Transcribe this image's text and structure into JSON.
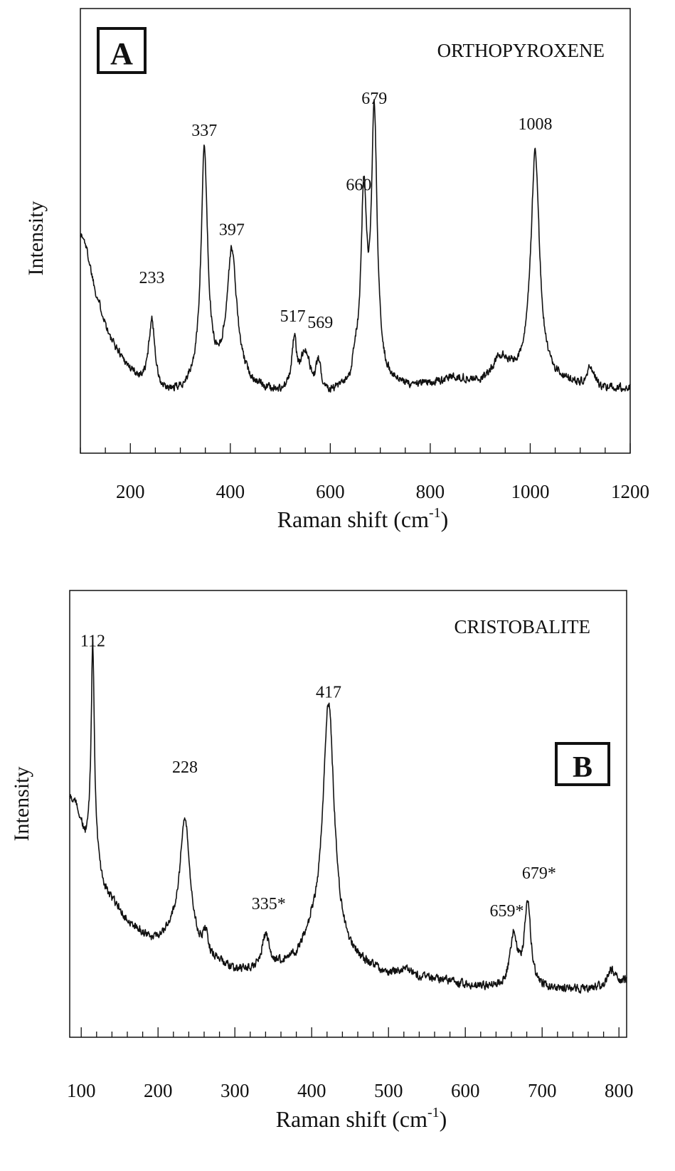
{
  "chart_data": [
    {
      "panel_label": "A",
      "type": "line",
      "title": "ORTHOPYROXENE",
      "xlabel": "Raman shift (cm",
      "xlabel_sup": "-1",
      "xlabel_close": ")",
      "ylabel": "Intensity",
      "xlim": [
        100,
        1200
      ],
      "ylim": [
        0,
        100
      ],
      "grid": false,
      "xticks": [
        200,
        400,
        600,
        800,
        1000,
        1200
      ],
      "xtick_labels": [
        "200",
        "400",
        "600",
        "800",
        "1000",
        "1200"
      ],
      "baseline": [
        [
          100,
          58
        ],
        [
          110,
          55
        ],
        [
          130,
          40
        ],
        [
          160,
          25
        ],
        [
          200,
          15
        ],
        [
          230,
          10
        ],
        [
          260,
          7
        ],
        [
          300,
          8
        ],
        [
          350,
          11
        ],
        [
          400,
          12
        ],
        [
          460,
          9
        ],
        [
          500,
          8
        ],
        [
          550,
          10
        ],
        [
          600,
          8
        ],
        [
          650,
          9
        ],
        [
          700,
          11
        ],
        [
          750,
          10
        ],
        [
          800,
          11
        ],
        [
          850,
          13
        ],
        [
          900,
          12
        ],
        [
          950,
          14
        ],
        [
          1000,
          15
        ],
        [
          1050,
          12
        ],
        [
          1100,
          11
        ],
        [
          1150,
          10
        ],
        [
          1200,
          10
        ]
      ],
      "peaks": [
        {
          "label": "233",
          "x": 243,
          "height": 22,
          "width": 8
        },
        {
          "label": "337",
          "x": 348,
          "height": 72,
          "width": 8
        },
        {
          "label": "397",
          "x": 403,
          "height": 40,
          "width": 12
        },
        {
          "label": "517",
          "x": 528,
          "height": 16,
          "width": 6
        },
        {
          "label": "569",
          "x": 576,
          "height": 9,
          "width": 6
        },
        {
          "label": "660",
          "x": 667,
          "height": 58,
          "width": 7
        },
        {
          "label": "679",
          "x": 688,
          "height": 82,
          "width": 7
        },
        {
          "label": "1008",
          "x": 1010,
          "height": 70,
          "width": 10
        }
      ],
      "extra_bumps": [
        [
          550,
          10,
          8
        ],
        [
          650,
          6,
          5
        ],
        [
          940,
          5,
          15
        ],
        [
          1120,
          5,
          8
        ]
      ],
      "peak_labels": [
        {
          "text": "233",
          "x": 243,
          "y": 40
        },
        {
          "text": "337",
          "x": 348,
          "y": 86
        },
        {
          "text": "397",
          "x": 403,
          "y": 55
        },
        {
          "text": "517",
          "x": 525,
          "y": 28
        },
        {
          "text": "569",
          "x": 580,
          "y": 26
        },
        {
          "text": "660",
          "x": 657,
          "y": 69
        },
        {
          "text": "679",
          "x": 688,
          "y": 96
        },
        {
          "text": "1008",
          "x": 1010,
          "y": 88
        }
      ]
    },
    {
      "panel_label": "B",
      "type": "line",
      "title": "CRISTOBALITE",
      "xlabel": "Raman shift (cm",
      "xlabel_sup": "-1",
      "xlabel_close": ")",
      "ylabel": "Intensity",
      "xlim": [
        85,
        810
      ],
      "ylim": [
        0,
        100
      ],
      "grid": false,
      "xticks": [
        100,
        200,
        300,
        400,
        500,
        600,
        700,
        800
      ],
      "xtick_labels": [
        "100",
        "200",
        "300",
        "400",
        "500",
        "600",
        "700",
        "800"
      ],
      "baseline": [
        [
          85,
          61
        ],
        [
          95,
          58
        ],
        [
          105,
          48
        ],
        [
          115,
          46
        ],
        [
          130,
          34
        ],
        [
          160,
          25
        ],
        [
          190,
          19
        ],
        [
          220,
          20
        ],
        [
          260,
          15
        ],
        [
          300,
          10
        ],
        [
          340,
          10
        ],
        [
          380,
          13
        ],
        [
          400,
          18
        ],
        [
          450,
          13
        ],
        [
          500,
          9
        ],
        [
          560,
          8
        ],
        [
          600,
          6
        ],
        [
          650,
          5
        ],
        [
          700,
          5
        ],
        [
          750,
          5
        ],
        [
          780,
          6
        ],
        [
          810,
          8
        ]
      ],
      "peaks": [
        {
          "label": "112",
          "x": 115,
          "height": 60,
          "width": 2.5
        },
        {
          "label": "228",
          "x": 235,
          "height": 37,
          "width": 8
        },
        {
          "label": "335*",
          "x": 340,
          "height": 10,
          "width": 6
        },
        {
          "label": "417",
          "x": 422,
          "height": 73,
          "width": 9
        },
        {
          "label": "659*",
          "x": 663,
          "height": 15,
          "width": 6
        },
        {
          "label": "679*",
          "x": 681,
          "height": 25,
          "width": 5
        }
      ],
      "extra_bumps": [
        [
          262,
          5,
          3
        ],
        [
          520,
          2,
          8
        ],
        [
          790,
          4,
          5
        ]
      ],
      "peak_labels": [
        {
          "text": "112",
          "x": 115,
          "y": 103
        },
        {
          "text": "228",
          "x": 235,
          "y": 66
        },
        {
          "text": "335*",
          "x": 344,
          "y": 26
        },
        {
          "text": "417",
          "x": 422,
          "y": 88
        },
        {
          "text": "659*",
          "x": 654,
          "y": 24
        },
        {
          "text": "679*",
          "x": 696,
          "y": 35
        }
      ]
    }
  ]
}
